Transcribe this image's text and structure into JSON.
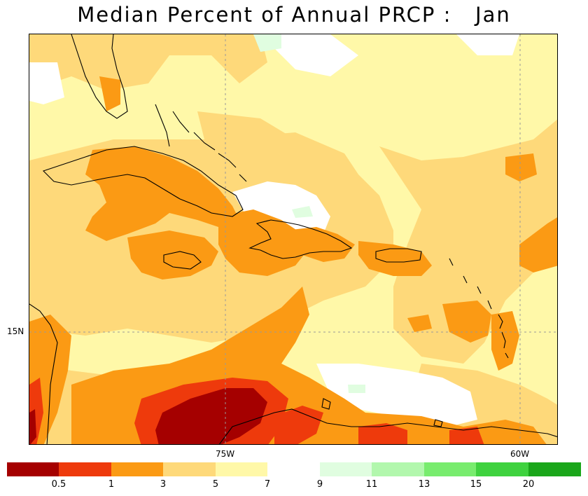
{
  "title": "Median Percent of Annual PRCP :   Jan",
  "axes": {
    "x_ticks": [
      "75W",
      "60W"
    ],
    "y_ticks": [
      "15N"
    ]
  },
  "legend": {
    "colors": [
      "#a50000",
      "#ee3a0c",
      "#fb9a14",
      "#fed97a",
      "#fff8a8",
      "#ffffff",
      "#e0fde0",
      "#b2f7ad",
      "#78ec6e",
      "#3fd23f",
      "#1aa61a"
    ],
    "labels": [
      "0.5",
      "1",
      "3",
      "5",
      "7",
      "9",
      "11",
      "13",
      "15",
      "20"
    ]
  },
  "colors": {
    "background_field": "#fff8a8",
    "coastline": "#000000",
    "borders": "#a0a0a0"
  }
}
